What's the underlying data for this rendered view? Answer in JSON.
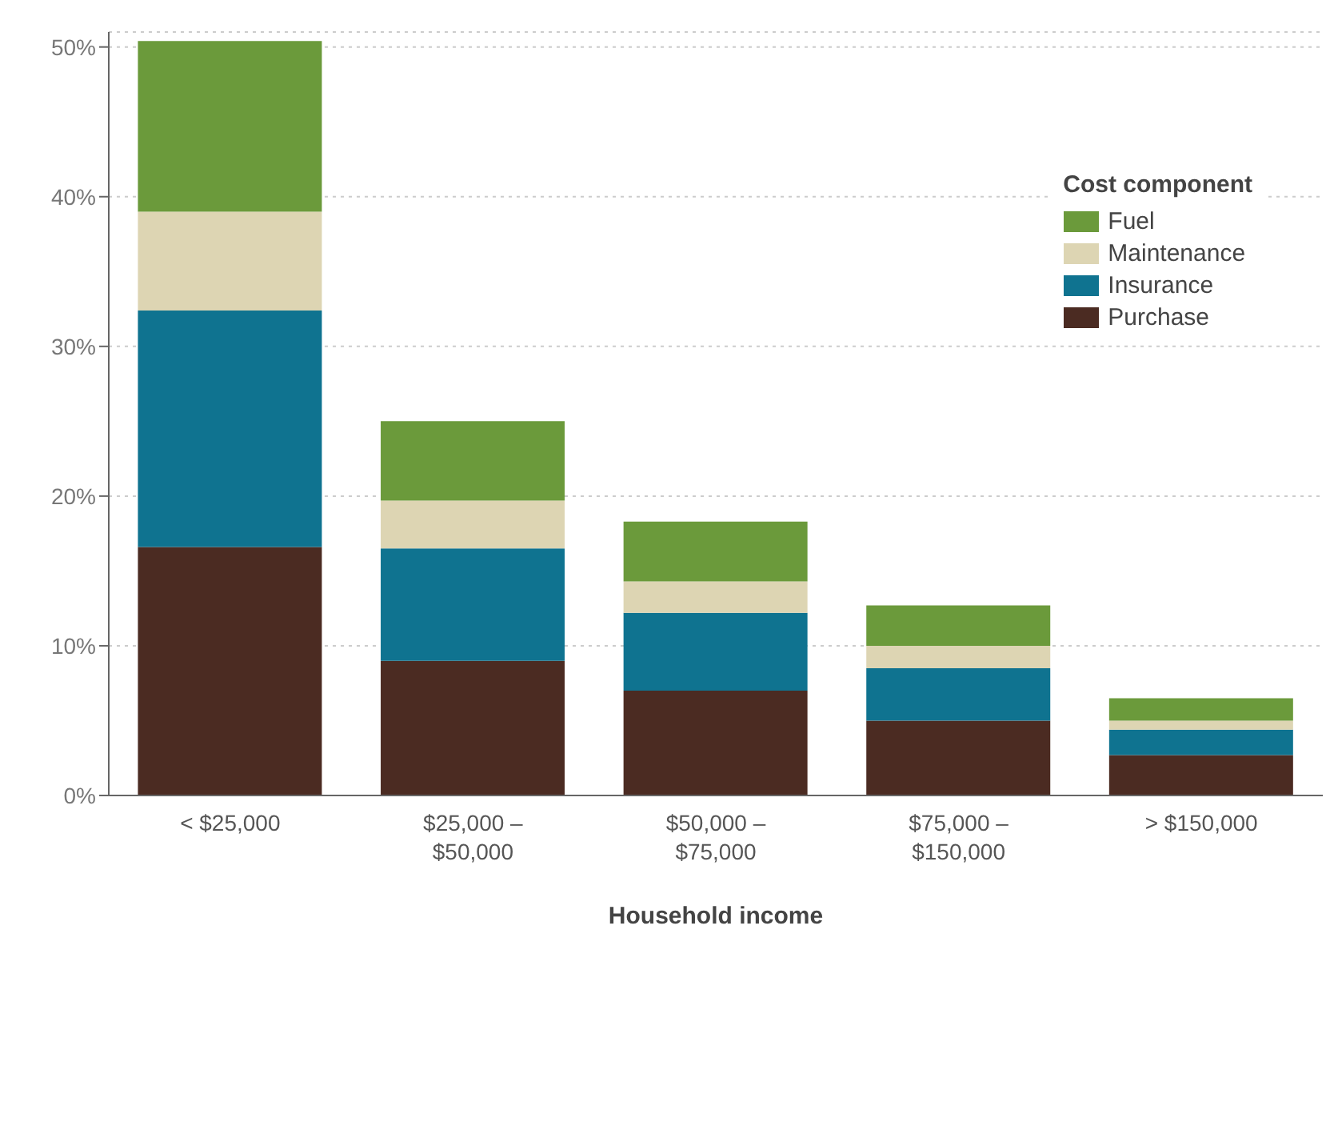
{
  "chart_data": {
    "type": "bar",
    "stacked": true,
    "xlabel": "Household income",
    "legend_title": "Cost component",
    "legend": "top right",
    "grid": "y",
    "categories": [
      "< $25,000",
      "$25,000 – $50,000",
      "$50,000 – $75,000",
      "$75,000 – $150,000",
      "> $150,000"
    ],
    "series": [
      {
        "name": "Purchase",
        "color": "#4b2b22",
        "values": [
          16.6,
          9.0,
          7.0,
          5.0,
          2.7
        ]
      },
      {
        "name": "Insurance",
        "color": "#0f7390",
        "values": [
          15.8,
          7.5,
          5.2,
          3.5,
          1.7
        ]
      },
      {
        "name": "Maintenance",
        "color": "#ddd5b3",
        "values": [
          6.6,
          3.2,
          2.1,
          1.5,
          0.6
        ]
      },
      {
        "name": "Fuel",
        "color": "#6b9a3b",
        "values": [
          11.4,
          5.3,
          4.0,
          2.7,
          1.5
        ]
      }
    ],
    "ylim": [
      0,
      51
    ],
    "yticks": [
      {
        "value": 0,
        "label": "0%"
      },
      {
        "value": 10,
        "label": "10%"
      },
      {
        "value": 20,
        "label": "20%"
      },
      {
        "value": 30,
        "label": "30%"
      },
      {
        "value": 40,
        "label": "40%"
      },
      {
        "value": 50,
        "label": "50%"
      }
    ]
  }
}
